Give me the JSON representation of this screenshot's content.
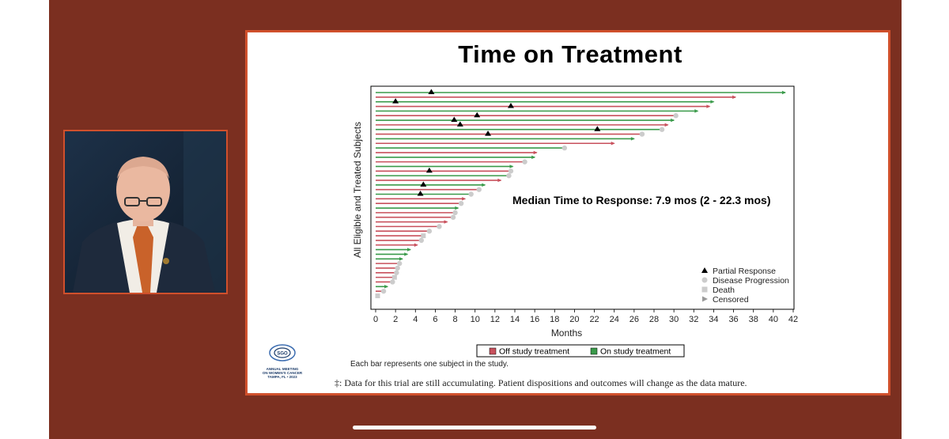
{
  "slide": {
    "title": "Time on Treatment",
    "note_each_bar": "Each bar represents one subject in the study.",
    "note_data": "‡: Data for this trial are still accumulating.  Patient dispositions and outcomes will change as the data mature.",
    "logo_text": [
      "SGO",
      "ANNUAL MEETING",
      "ON WOMEN'S CANCER",
      "TAMPA, FL • 2023"
    ]
  },
  "colors": {
    "off": "#c8505c",
    "on": "#3a9a4a",
    "accent": "#d0502c",
    "stage": "#7b2f20"
  },
  "chart_data": {
    "type": "bar",
    "orientation": "horizontal",
    "title": "Time on Treatment",
    "xlabel": "Months",
    "ylabel": "All Eligible and Treated Subjects",
    "xlim": [
      0,
      42
    ],
    "xticks": [
      0,
      2,
      4,
      6,
      8,
      10,
      12,
      14,
      16,
      18,
      20,
      22,
      24,
      26,
      28,
      30,
      32,
      34,
      36,
      38,
      40,
      42
    ],
    "annotation": "Median Time to Response: 7.9 mos (2 - 22.3 mos)",
    "legend": {
      "markers": [
        {
          "label": "Partial Response",
          "shape": "triangle"
        },
        {
          "label": "Disease Progression",
          "shape": "circle"
        },
        {
          "label": "Death",
          "shape": "square"
        },
        {
          "label": "Censored",
          "shape": "arrow"
        }
      ],
      "series": [
        {
          "label": "Off study treatment",
          "color": "#c8505c"
        },
        {
          "label": "On study treatment",
          "color": "#3a9a4a"
        }
      ]
    },
    "subjects": [
      {
        "m": 41.2,
        "s": "on",
        "end": "arrow",
        "pr": 5.6
      },
      {
        "m": 36.2,
        "s": "off",
        "end": "arrow"
      },
      {
        "m": 34.0,
        "s": "on",
        "end": "arrow",
        "pr": 2.0
      },
      {
        "m": 33.6,
        "s": "off",
        "end": "arrow",
        "pr": 13.6
      },
      {
        "m": 32.4,
        "s": "on",
        "end": "arrow"
      },
      {
        "m": 30.2,
        "s": "off",
        "end": "circle",
        "pr": 10.2
      },
      {
        "m": 30.0,
        "s": "on",
        "end": "arrow",
        "pr": 7.9
      },
      {
        "m": 29.4,
        "s": "off",
        "end": "arrow",
        "pr": 8.5
      },
      {
        "m": 28.8,
        "s": "on",
        "end": "circle",
        "pr": 22.3
      },
      {
        "m": 26.8,
        "s": "off",
        "end": "circle",
        "pr": 11.3
      },
      {
        "m": 26.0,
        "s": "on",
        "end": "arrow"
      },
      {
        "m": 24.0,
        "s": "off",
        "end": "arrow"
      },
      {
        "m": 19.0,
        "s": "on",
        "end": "circle"
      },
      {
        "m": 16.2,
        "s": "off",
        "end": "arrow"
      },
      {
        "m": 16.0,
        "s": "on",
        "end": "arrow"
      },
      {
        "m": 15.0,
        "s": "off",
        "end": "circle"
      },
      {
        "m": 13.8,
        "s": "on",
        "end": "arrow"
      },
      {
        "m": 13.6,
        "s": "off",
        "end": "circle",
        "pr": 5.4
      },
      {
        "m": 13.4,
        "s": "on",
        "end": "circle"
      },
      {
        "m": 12.6,
        "s": "off",
        "end": "arrow"
      },
      {
        "m": 11.0,
        "s": "on",
        "end": "arrow",
        "pr": 4.8
      },
      {
        "m": 10.4,
        "s": "off",
        "end": "circle"
      },
      {
        "m": 9.6,
        "s": "on",
        "end": "circle",
        "pr": 4.5
      },
      {
        "m": 9.0,
        "s": "off",
        "end": "arrow"
      },
      {
        "m": 8.6,
        "s": "off",
        "end": "circle"
      },
      {
        "m": 8.3,
        "s": "on",
        "end": "arrow"
      },
      {
        "m": 8.0,
        "s": "off",
        "end": "circle"
      },
      {
        "m": 7.8,
        "s": "off",
        "end": "circle"
      },
      {
        "m": 7.2,
        "s": "off",
        "end": "arrow"
      },
      {
        "m": 6.4,
        "s": "off",
        "end": "circle"
      },
      {
        "m": 5.4,
        "s": "off",
        "end": "circle"
      },
      {
        "m": 4.8,
        "s": "off",
        "end": "square"
      },
      {
        "m": 4.6,
        "s": "off",
        "end": "circle"
      },
      {
        "m": 4.2,
        "s": "off",
        "end": "arrow"
      },
      {
        "m": 3.5,
        "s": "on",
        "end": "arrow"
      },
      {
        "m": 3.2,
        "s": "on",
        "end": "arrow"
      },
      {
        "m": 2.7,
        "s": "on",
        "end": "arrow"
      },
      {
        "m": 2.4,
        "s": "off",
        "end": "circle"
      },
      {
        "m": 2.2,
        "s": "off",
        "end": "circle"
      },
      {
        "m": 2.1,
        "s": "off",
        "end": "circle"
      },
      {
        "m": 1.9,
        "s": "off",
        "end": "square"
      },
      {
        "m": 1.7,
        "s": "off",
        "end": "circle"
      },
      {
        "m": 1.2,
        "s": "on",
        "end": "arrow"
      },
      {
        "m": 0.8,
        "s": "off",
        "end": "circle"
      },
      {
        "m": 0.2,
        "s": "off",
        "end": "square"
      }
    ]
  }
}
